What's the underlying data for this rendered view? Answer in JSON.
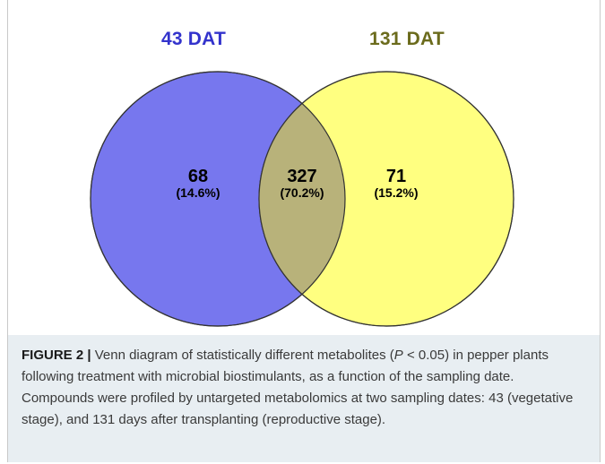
{
  "venn": {
    "set_a": {
      "title": "43 DAT",
      "color": "#7777ee"
    },
    "set_b": {
      "title": "131 DAT",
      "color": "#ffff80"
    },
    "overlap_color": "#b8b27a",
    "regions": {
      "only_a": {
        "count": "68",
        "percent": "(14.6%)"
      },
      "both": {
        "count": "327",
        "percent": "(70.2%)"
      },
      "only_b": {
        "count": "71",
        "percent": "(15.2%)"
      }
    }
  },
  "caption": {
    "label": "FIGURE 2 |",
    "text_before_p": " Venn diagram of statistically different metabolites (",
    "p_symbol": "P",
    "text_after_p": " < 0.05) in pepper plants following treatment with microbial biostimulants, as a function of the sampling date. Compounds were profiled by untargeted metabolomics at two sampling dates: 43 (vegetative stage), and 131 days after transplanting (reproductive stage)."
  }
}
